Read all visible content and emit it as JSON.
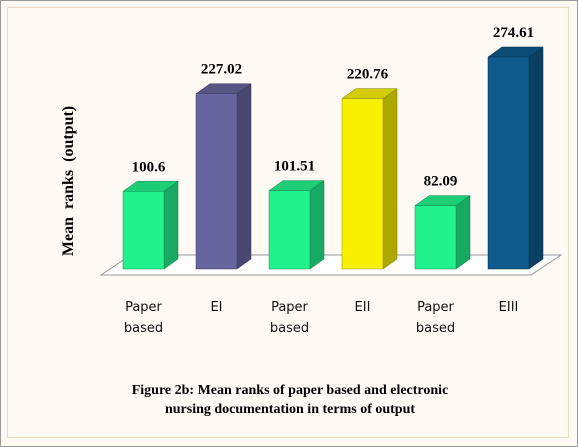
{
  "chart_data": {
    "type": "bar3d",
    "y_label": "Mean  ranks  (output)",
    "caption": "Figure 2b: Mean ranks of paper based and electronic nursing documentation in terms of output",
    "categories": [
      "Paper based",
      "EI",
      "Paper based",
      "EII",
      "Paper based",
      "EIII"
    ],
    "values": [
      100.6,
      227.02,
      101.51,
      220.76,
      82.09,
      274.61
    ],
    "colors": [
      "#22f28c",
      "#67659f",
      "#22f28c",
      "#f7f000",
      "#22f28c",
      "#0e5a8c"
    ]
  }
}
